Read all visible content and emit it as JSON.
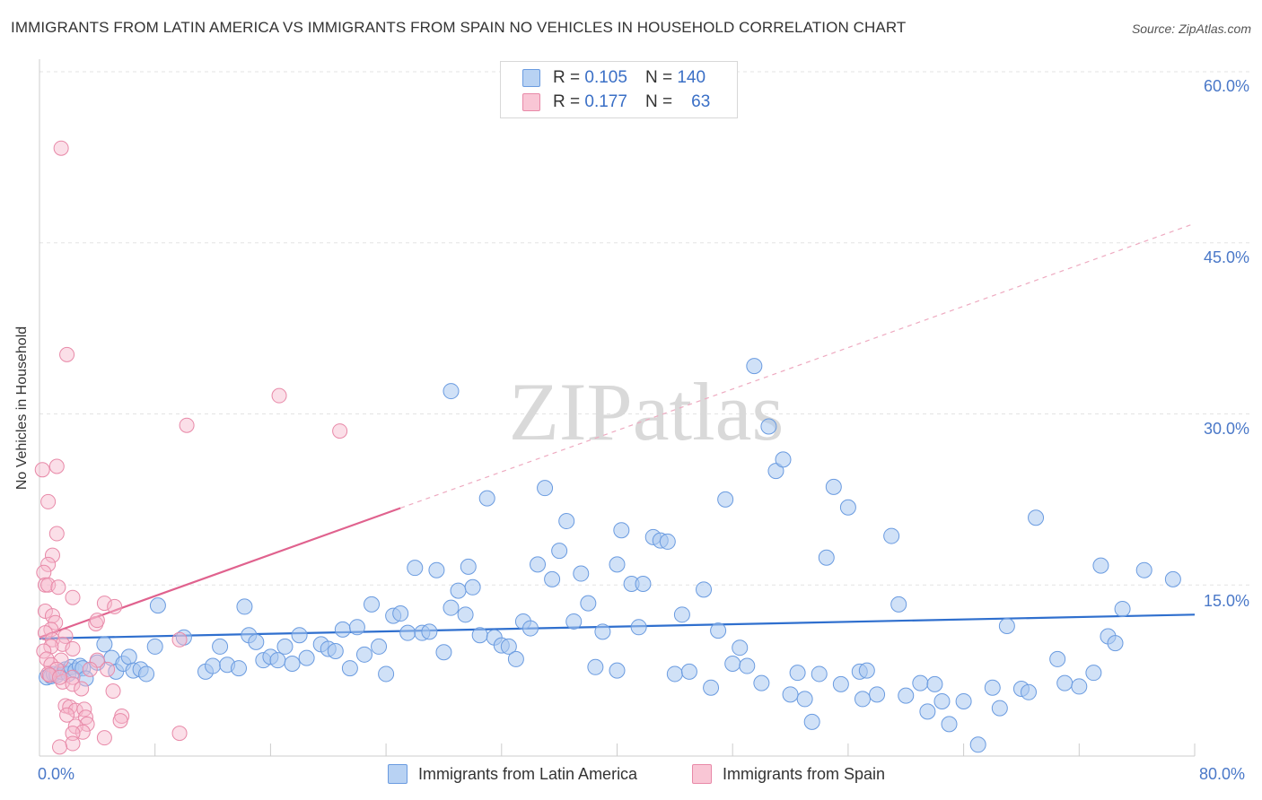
{
  "title": "IMMIGRANTS FROM LATIN AMERICA VS IMMIGRANTS FROM SPAIN NO VEHICLES IN HOUSEHOLD CORRELATION CHART",
  "source": "Source: ZipAtlas.com",
  "watermark": "ZIPatlas",
  "legend": {
    "r_label": "R =",
    "n_label": "N =",
    "series1": {
      "r": "0.105",
      "n": "140"
    },
    "series2": {
      "r": "0.177",
      "n": "63"
    }
  },
  "colors": {
    "blue_fill": "#a9c8f0",
    "blue_stroke": "#6a9be0",
    "blue_line": "#2f6fce",
    "pink_fill": "#f7b8cb",
    "pink_stroke": "#e889a8",
    "pink_line": "#e0628e",
    "axis_text": "#4a78c8"
  },
  "chart_data": {
    "type": "scatter",
    "title": "IMMIGRANTS FROM LATIN AMERICA VS IMMIGRANTS FROM SPAIN NO VEHICLES IN HOUSEHOLD CORRELATION CHART",
    "xlabel": "",
    "ylabel": "No Vehicles in Household",
    "xlim": [
      0,
      80
    ],
    "ylim": [
      0,
      60
    ],
    "x_tick_labels": [
      "0.0%",
      "80.0%"
    ],
    "y_ticks": [
      15,
      30,
      45,
      60
    ],
    "y_tick_labels": [
      "15.0%",
      "30.0%",
      "45.0%",
      "60.0%"
    ],
    "grid": "horizontal dashed",
    "legend_position": "top-center",
    "series": [
      {
        "name": "Immigrants from Latin America",
        "r": 0.105,
        "n": 140,
        "trend": {
          "x": [
            0,
            80
          ],
          "y": [
            10.3,
            12.4
          ]
        },
        "points": [
          [
            0.5,
            6.9
          ],
          [
            0.8,
            7.0
          ],
          [
            1.0,
            7.2
          ],
          [
            1.2,
            7.1
          ],
          [
            1.5,
            7.4
          ],
          [
            1.8,
            7.6
          ],
          [
            2.0,
            7.2
          ],
          [
            2.2,
            7.8
          ],
          [
            2.5,
            7.5
          ],
          [
            2.8,
            7.9
          ],
          [
            3.0,
            7.7
          ],
          [
            3.2,
            6.8
          ],
          [
            4.0,
            8.2
          ],
          [
            4.5,
            9.8
          ],
          [
            5.0,
            8.6
          ],
          [
            5.3,
            7.4
          ],
          [
            5.8,
            8.1
          ],
          [
            6.2,
            8.7
          ],
          [
            6.5,
            7.5
          ],
          [
            7.0,
            7.6
          ],
          [
            7.4,
            7.2
          ],
          [
            8.0,
            9.6
          ],
          [
            8.2,
            13.2
          ],
          [
            10.0,
            10.4
          ],
          [
            11.5,
            7.4
          ],
          [
            12.0,
            7.9
          ],
          [
            12.5,
            9.6
          ],
          [
            13.0,
            8.0
          ],
          [
            13.8,
            7.7
          ],
          [
            14.2,
            13.1
          ],
          [
            14.5,
            10.6
          ],
          [
            15.0,
            10.0
          ],
          [
            15.5,
            8.4
          ],
          [
            16.0,
            8.7
          ],
          [
            16.5,
            8.4
          ],
          [
            17.0,
            9.6
          ],
          [
            17.5,
            8.1
          ],
          [
            18.0,
            10.6
          ],
          [
            18.5,
            8.6
          ],
          [
            19.5,
            9.8
          ],
          [
            20.0,
            9.4
          ],
          [
            20.5,
            9.2
          ],
          [
            21.0,
            11.1
          ],
          [
            21.5,
            7.7
          ],
          [
            22.0,
            11.3
          ],
          [
            22.5,
            8.9
          ],
          [
            23.0,
            13.3
          ],
          [
            23.5,
            9.6
          ],
          [
            24.0,
            7.2
          ],
          [
            24.5,
            12.3
          ],
          [
            25.0,
            12.5
          ],
          [
            25.5,
            10.8
          ],
          [
            26.0,
            16.5
          ],
          [
            26.5,
            10.8
          ],
          [
            27.0,
            10.9
          ],
          [
            27.5,
            16.3
          ],
          [
            28.0,
            9.1
          ],
          [
            28.5,
            13.0
          ],
          [
            29.0,
            14.5
          ],
          [
            29.5,
            12.4
          ],
          [
            29.7,
            16.6
          ],
          [
            30.0,
            14.8
          ],
          [
            30.5,
            10.6
          ],
          [
            31.0,
            22.6
          ],
          [
            31.5,
            10.4
          ],
          [
            32.0,
            9.7
          ],
          [
            32.5,
            9.6
          ],
          [
            33.0,
            8.5
          ],
          [
            33.5,
            11.8
          ],
          [
            34.0,
            11.2
          ],
          [
            34.5,
            16.8
          ],
          [
            35.0,
            23.5
          ],
          [
            35.5,
            15.5
          ],
          [
            36.0,
            18.0
          ],
          [
            36.5,
            20.6
          ],
          [
            37.0,
            11.8
          ],
          [
            37.5,
            16.0
          ],
          [
            38.0,
            13.4
          ],
          [
            38.5,
            7.8
          ],
          [
            39.0,
            10.9
          ],
          [
            40.0,
            16.8
          ],
          [
            40.3,
            19.8
          ],
          [
            41.0,
            15.1
          ],
          [
            41.5,
            11.3
          ],
          [
            41.8,
            15.1
          ],
          [
            42.5,
            19.2
          ],
          [
            43.0,
            18.9
          ],
          [
            43.5,
            18.8
          ],
          [
            44.0,
            7.2
          ],
          [
            44.5,
            12.4
          ],
          [
            45.0,
            7.4
          ],
          [
            46.0,
            14.6
          ],
          [
            46.5,
            6.0
          ],
          [
            47.0,
            11.0
          ],
          [
            47.5,
            22.5
          ],
          [
            48.0,
            8.1
          ],
          [
            48.5,
            9.5
          ],
          [
            49.0,
            7.9
          ],
          [
            49.5,
            34.2
          ],
          [
            50.0,
            6.4
          ],
          [
            50.5,
            28.9
          ],
          [
            51.0,
            25.0
          ],
          [
            51.5,
            26.0
          ],
          [
            52.0,
            5.4
          ],
          [
            52.5,
            7.3
          ],
          [
            53.0,
            5.0
          ],
          [
            53.5,
            3.0
          ],
          [
            54.0,
            7.2
          ],
          [
            54.5,
            17.4
          ],
          [
            55.0,
            23.6
          ],
          [
            55.5,
            6.3
          ],
          [
            56.0,
            21.8
          ],
          [
            56.8,
            7.4
          ],
          [
            57.0,
            5.0
          ],
          [
            57.3,
            7.5
          ],
          [
            58.0,
            5.4
          ],
          [
            59.0,
            19.3
          ],
          [
            59.5,
            13.3
          ],
          [
            60.0,
            5.3
          ],
          [
            61.0,
            6.4
          ],
          [
            61.5,
            3.9
          ],
          [
            62.0,
            6.3
          ],
          [
            62.5,
            4.8
          ],
          [
            63.0,
            2.8
          ],
          [
            64.0,
            4.8
          ],
          [
            65.0,
            1.0
          ],
          [
            66.0,
            6.0
          ],
          [
            66.5,
            4.2
          ],
          [
            67.0,
            11.4
          ],
          [
            68.0,
            5.9
          ],
          [
            68.5,
            5.6
          ],
          [
            69.0,
            20.9
          ],
          [
            70.5,
            8.5
          ],
          [
            71.0,
            6.4
          ],
          [
            72.0,
            6.1
          ],
          [
            73.0,
            7.3
          ],
          [
            73.5,
            16.7
          ],
          [
            74.0,
            10.5
          ],
          [
            74.5,
            9.9
          ],
          [
            75.0,
            12.9
          ],
          [
            76.5,
            16.3
          ],
          [
            78.5,
            15.5
          ],
          [
            28.5,
            32.0
          ],
          [
            40.0,
            7.5
          ]
        ]
      },
      {
        "name": "Immigrants from Spain",
        "r": 0.177,
        "n": 63,
        "trend": {
          "x": [
            0,
            80
          ],
          "y": [
            10.4,
            46.7
          ]
        },
        "trend_solid_to_x": 25,
        "points": [
          [
            1.5,
            53.3
          ],
          [
            1.9,
            35.2
          ],
          [
            10.2,
            29.0
          ],
          [
            16.6,
            31.6
          ],
          [
            20.8,
            28.5
          ],
          [
            1.2,
            25.4
          ],
          [
            0.2,
            25.1
          ],
          [
            0.6,
            22.3
          ],
          [
            1.2,
            19.5
          ],
          [
            0.9,
            17.6
          ],
          [
            0.6,
            16.8
          ],
          [
            0.3,
            16.1
          ],
          [
            0.4,
            15.0
          ],
          [
            0.6,
            15.0
          ],
          [
            1.3,
            14.8
          ],
          [
            2.3,
            13.9
          ],
          [
            4.5,
            13.4
          ],
          [
            5.2,
            13.1
          ],
          [
            0.4,
            12.7
          ],
          [
            0.9,
            12.3
          ],
          [
            1.1,
            11.7
          ],
          [
            0.8,
            11.1
          ],
          [
            3.9,
            11.6
          ],
          [
            4.0,
            11.9
          ],
          [
            0.4,
            10.8
          ],
          [
            1.8,
            10.5
          ],
          [
            0.9,
            10.2
          ],
          [
            9.7,
            10.2
          ],
          [
            1.6,
            9.8
          ],
          [
            0.8,
            9.6
          ],
          [
            0.3,
            9.2
          ],
          [
            2.3,
            9.4
          ],
          [
            0.5,
            8.5
          ],
          [
            4.0,
            8.4
          ],
          [
            1.5,
            8.4
          ],
          [
            0.8,
            8.0
          ],
          [
            1.2,
            7.6
          ],
          [
            0.6,
            7.2
          ],
          [
            1.6,
            6.5
          ],
          [
            2.3,
            6.9
          ],
          [
            3.5,
            7.6
          ],
          [
            0.7,
            7.1
          ],
          [
            4.7,
            7.6
          ],
          [
            1.4,
            6.9
          ],
          [
            2.3,
            6.3
          ],
          [
            2.9,
            5.9
          ],
          [
            5.1,
            5.7
          ],
          [
            1.8,
            4.4
          ],
          [
            2.1,
            4.3
          ],
          [
            2.5,
            4.0
          ],
          [
            3.1,
            4.1
          ],
          [
            1.9,
            3.6
          ],
          [
            3.2,
            3.4
          ],
          [
            5.7,
            3.5
          ],
          [
            3.3,
            2.8
          ],
          [
            2.5,
            2.6
          ],
          [
            5.6,
            3.1
          ],
          [
            3.0,
            2.1
          ],
          [
            2.3,
            2.0
          ],
          [
            9.7,
            2.0
          ],
          [
            4.5,
            1.6
          ],
          [
            2.3,
            1.1
          ],
          [
            1.4,
            0.8
          ]
        ]
      }
    ]
  },
  "bottom_legend": {
    "item1": "Immigrants from Latin America",
    "item2": "Immigrants from Spain"
  },
  "axes": {
    "ylabel": "No Vehicles in Household",
    "x_min_label": "0.0%",
    "x_max_label": "80.0%",
    "y_labels": [
      "15.0%",
      "30.0%",
      "45.0%",
      "60.0%"
    ]
  }
}
